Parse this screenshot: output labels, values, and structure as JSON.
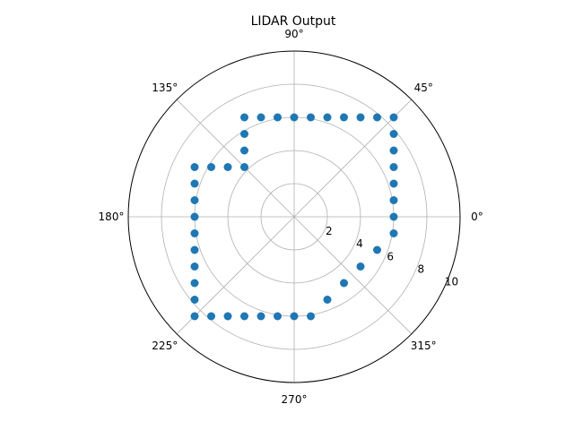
{
  "chart_data": {
    "type": "scatter",
    "projection": "polar",
    "title": "LIDAR Output",
    "angle_ticks": [
      "0°",
      "45°",
      "90°",
      "135°",
      "180°",
      "225°",
      "270°",
      "315°"
    ],
    "radial_ticks": [
      "2",
      "4",
      "6",
      "8",
      "10"
    ],
    "rlim": [
      0,
      10
    ],
    "grid": true,
    "marker_color": "#1f77b4",
    "points_cartesian": [
      [
        6,
        6
      ],
      [
        5,
        6
      ],
      [
        4,
        6
      ],
      [
        3,
        6
      ],
      [
        2,
        6
      ],
      [
        1,
        6
      ],
      [
        0,
        6
      ],
      [
        -1,
        6
      ],
      [
        -2,
        6
      ],
      [
        -3,
        6
      ],
      [
        -3,
        5
      ],
      [
        -3,
        4
      ],
      [
        -3,
        3
      ],
      [
        -4,
        3
      ],
      [
        -5,
        3
      ],
      [
        -6,
        3
      ],
      [
        -6,
        2
      ],
      [
        -6,
        1
      ],
      [
        -6,
        0
      ],
      [
        -6,
        -1
      ],
      [
        -6,
        -2
      ],
      [
        -6,
        -3
      ],
      [
        -6,
        -4
      ],
      [
        -6,
        -5
      ],
      [
        -6,
        -6
      ],
      [
        -5,
        -6
      ],
      [
        -4,
        -6
      ],
      [
        -3,
        -6
      ],
      [
        -2,
        -6
      ],
      [
        -1,
        -6
      ],
      [
        0,
        -6
      ],
      [
        1,
        -6
      ],
      [
        2,
        -5
      ],
      [
        3,
        -4
      ],
      [
        4,
        -3
      ],
      [
        5,
        -2
      ],
      [
        6,
        -1
      ],
      [
        6,
        0
      ],
      [
        6,
        1
      ],
      [
        6,
        2
      ],
      [
        6,
        3
      ],
      [
        6,
        4
      ],
      [
        6,
        5
      ]
    ]
  }
}
